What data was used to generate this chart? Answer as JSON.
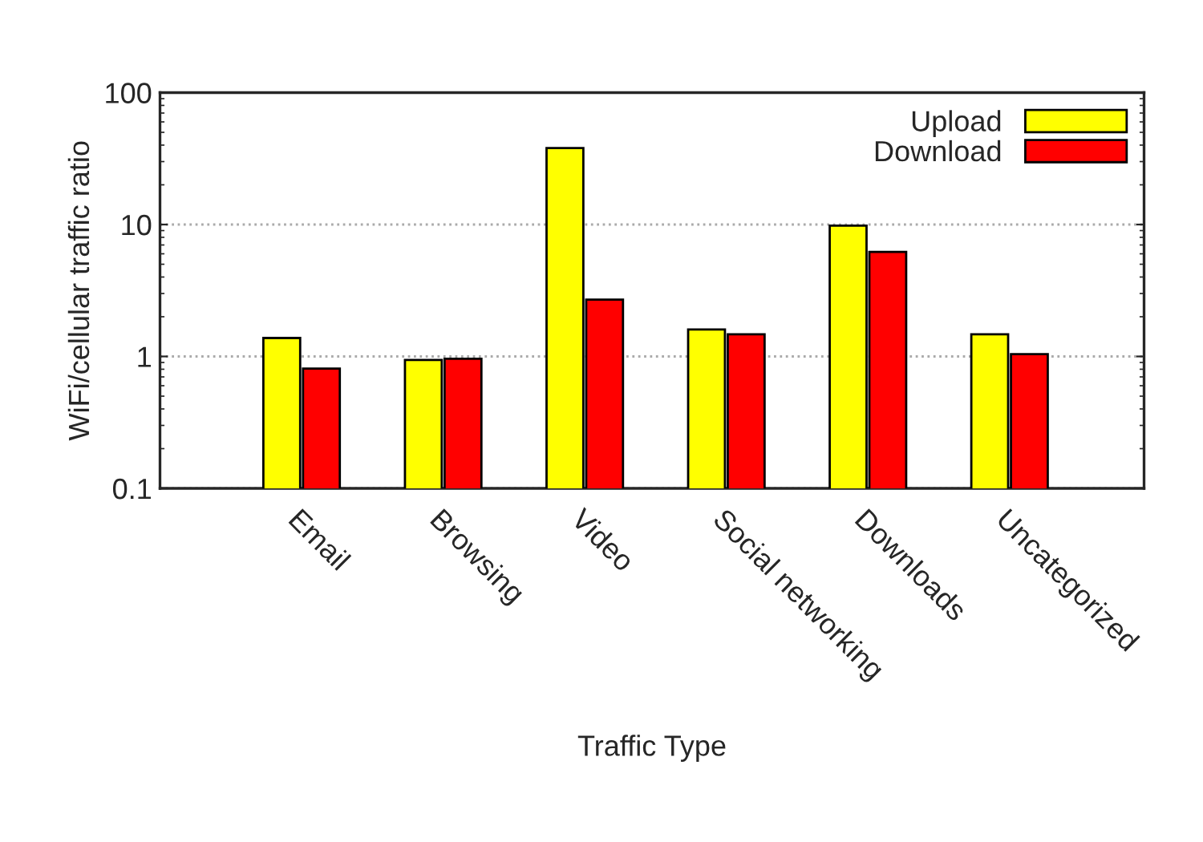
{
  "chart_data": {
    "type": "bar",
    "xlabel": "Traffic Type",
    "ylabel": "WiFi/cellular traffic ratio",
    "categories": [
      "Email",
      "Browsing",
      "Video",
      "Social networking",
      "Downloads",
      "Uncategorized"
    ],
    "series": [
      {
        "name": "Upload",
        "color": "#ffff00",
        "values": [
          1.38,
          0.94,
          38,
          1.6,
          9.8,
          1.47
        ]
      },
      {
        "name": "Download",
        "color": "#ff0000",
        "values": [
          0.81,
          0.96,
          2.7,
          1.47,
          6.2,
          1.04
        ]
      }
    ],
    "log": true,
    "ylim": [
      0.1,
      100
    ],
    "yticks": [
      0.1,
      1,
      10,
      100
    ],
    "grid": "y",
    "legend": "top right"
  }
}
